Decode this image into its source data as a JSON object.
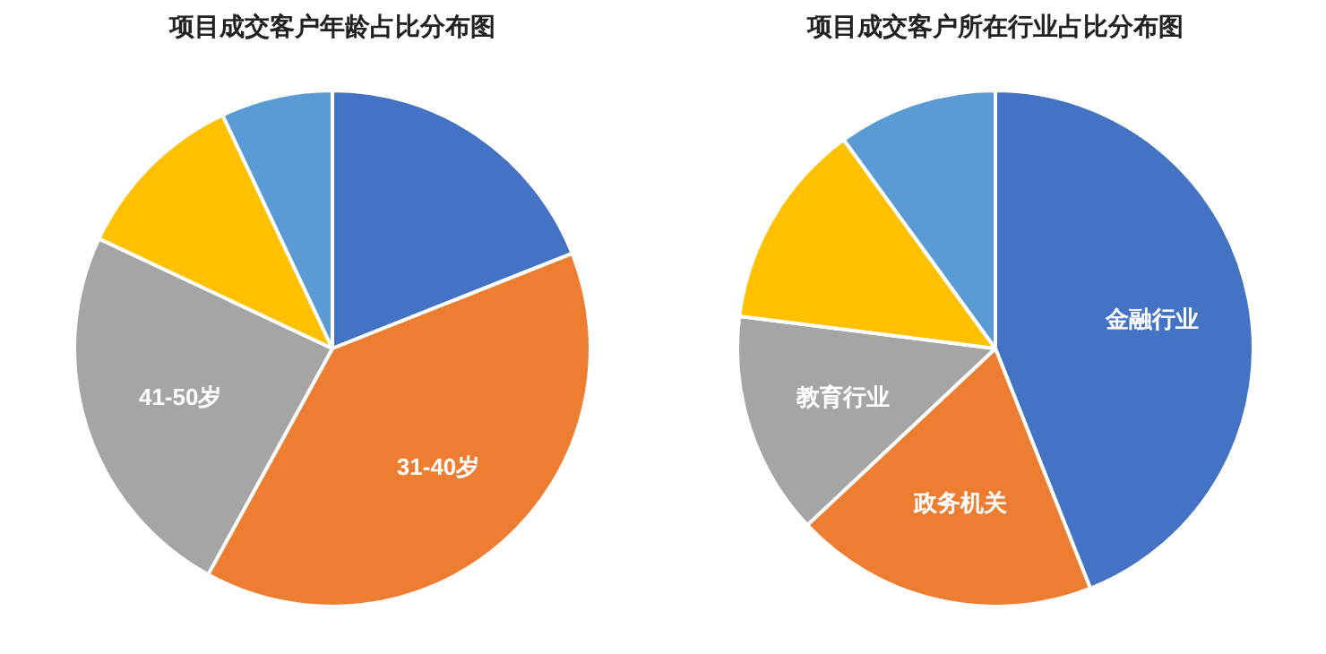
{
  "chart_data": [
    {
      "type": "pie",
      "title": "项目成交客户年龄占比分布图",
      "categories": [
        null,
        "31-40岁",
        "41-50岁",
        null,
        null
      ],
      "values": [
        19,
        39,
        24,
        11,
        7
      ],
      "colors": [
        "#4472c4",
        "#ed7d31",
        "#a5a5a5",
        "#ffc000",
        "#5b9bd5"
      ],
      "legend": false
    },
    {
      "type": "pie",
      "title": "项目成交客户所在行业占比分布图",
      "categories": [
        "金融行业",
        "政务机关",
        "教育行业",
        null,
        null
      ],
      "values": [
        44,
        19,
        14,
        13,
        10
      ],
      "colors": [
        "#4472c4",
        "#ed7d31",
        "#a5a5a5",
        "#ffc000",
        "#5b9bd5"
      ],
      "legend": false
    }
  ]
}
